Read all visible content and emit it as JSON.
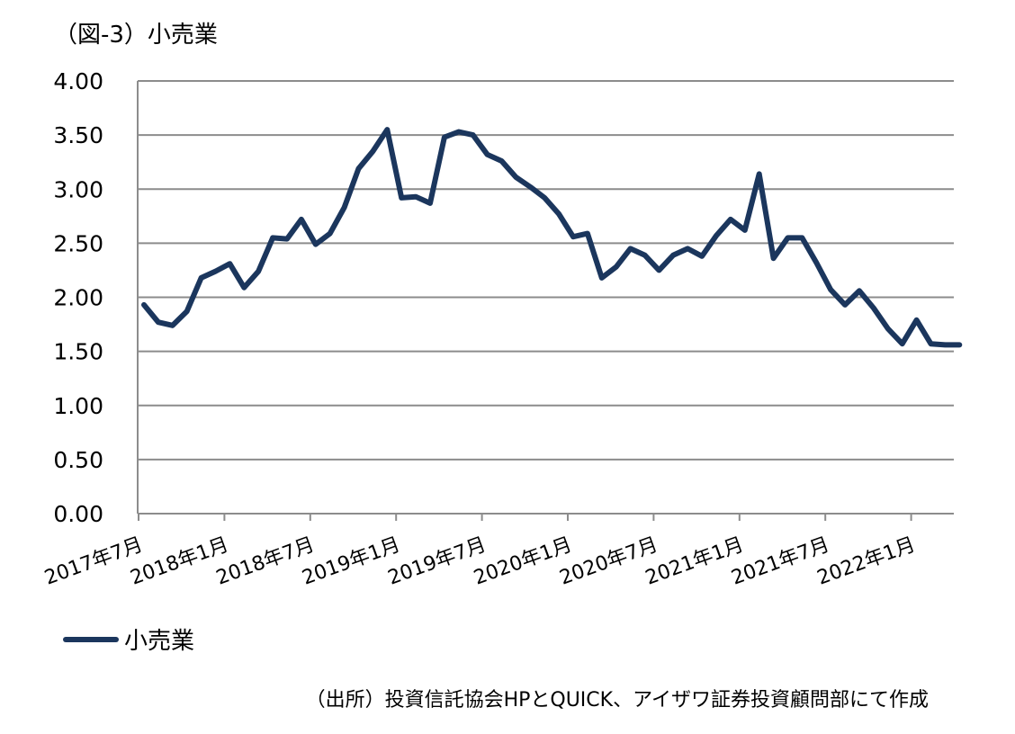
{
  "title": "（図-3）小売業",
  "source": "（出所）投資信託協会HPとQUICK、アイザワ証券投資顧問部にて作成",
  "colors": {
    "line": "#1b365d",
    "grid": "#8c8c8c",
    "axis": "#8c8c8c"
  },
  "chart_data": {
    "type": "line",
    "title": "（図-3）小売業",
    "xlabel": "",
    "ylabel": "",
    "ylim": [
      0,
      4
    ],
    "yticks": [
      "0.00",
      "0.50",
      "1.00",
      "1.50",
      "2.00",
      "2.50",
      "3.00",
      "3.50",
      "4.00"
    ],
    "xtick_labels": [
      "2017年7月",
      "2018年1月",
      "2018年7月",
      "2019年1月",
      "2019年7月",
      "2020年1月",
      "2020年7月",
      "2021年1月",
      "2021年7月",
      "2022年1月"
    ],
    "grid": true,
    "legend": "bottom-left",
    "x": [
      "2017-07",
      "2017-08",
      "2017-09",
      "2017-10",
      "2017-11",
      "2017-12",
      "2018-01",
      "2018-02",
      "2018-03",
      "2018-04",
      "2018-05",
      "2018-06",
      "2018-07",
      "2018-08",
      "2018-09",
      "2018-10",
      "2018-11",
      "2018-12",
      "2019-01",
      "2019-02",
      "2019-03",
      "2019-04",
      "2019-05",
      "2019-06",
      "2019-07",
      "2019-08",
      "2019-09",
      "2019-10",
      "2019-11",
      "2019-12",
      "2020-01",
      "2020-02",
      "2020-03",
      "2020-04",
      "2020-05",
      "2020-06",
      "2020-07",
      "2020-08",
      "2020-09",
      "2020-10",
      "2020-11",
      "2020-12",
      "2021-01",
      "2021-02",
      "2021-03",
      "2021-04",
      "2021-05",
      "2021-06",
      "2021-07",
      "2021-08",
      "2021-09",
      "2021-10",
      "2021-11",
      "2021-12",
      "2022-01",
      "2022-02",
      "2022-03",
      "2022-04"
    ],
    "series": [
      {
        "name": "小売業",
        "values": [
          1.93,
          1.77,
          1.74,
          1.87,
          2.18,
          2.24,
          2.31,
          2.09,
          2.24,
          2.55,
          2.54,
          2.72,
          2.49,
          2.59,
          2.83,
          3.19,
          3.35,
          3.55,
          2.92,
          2.93,
          2.87,
          3.48,
          3.53,
          3.5,
          3.32,
          3.26,
          3.11,
          3.02,
          2.92,
          2.77,
          2.56,
          2.59,
          2.18,
          2.28,
          2.45,
          2.39,
          2.25,
          2.39,
          2.45,
          2.38,
          2.57,
          2.72,
          2.62,
          3.14,
          2.36,
          2.55,
          2.55,
          2.32,
          2.07,
          1.93,
          2.06,
          1.9,
          1.71,
          1.57,
          1.79,
          1.57,
          1.56,
          1.56
        ]
      }
    ]
  }
}
